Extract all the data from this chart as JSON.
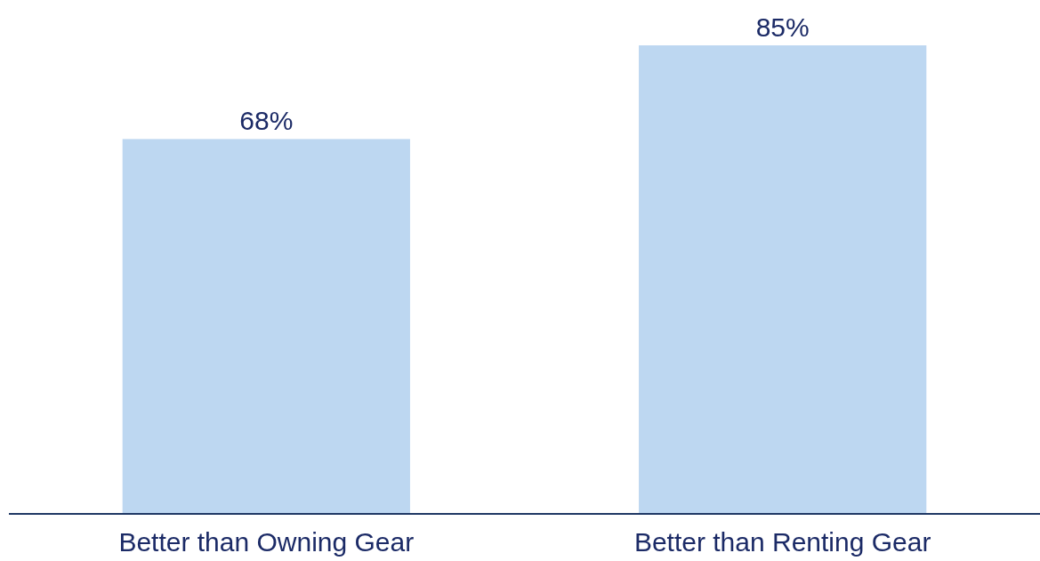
{
  "chart_data": {
    "type": "bar",
    "categories": [
      "Better than Owning Gear",
      "Better than Renting Gear"
    ],
    "values": [
      68,
      85
    ],
    "value_labels": [
      "68%",
      "85%"
    ],
    "color": "#bdd7f1"
  }
}
